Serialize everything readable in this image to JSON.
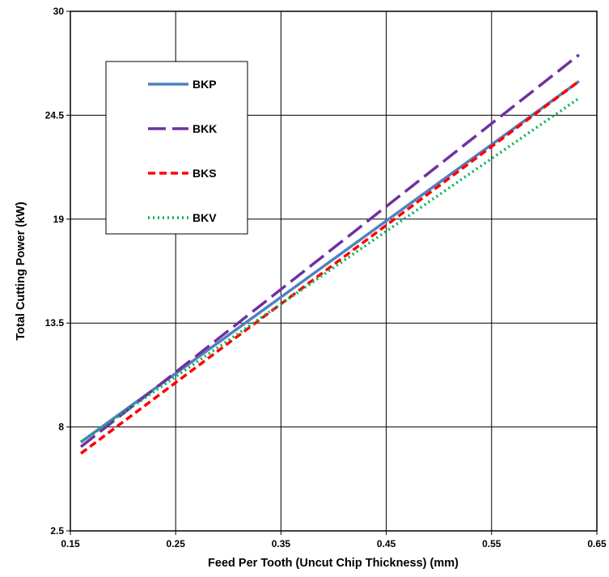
{
  "chart_data": {
    "type": "line",
    "title": "",
    "xlabel": "Feed Per Tooth (Uncut Chip Thickness) (mm)",
    "ylabel": "Total Cutting Power (kW)",
    "xlim": [
      0.15,
      0.65
    ],
    "ylim": [
      2.5,
      30
    ],
    "xticks": [
      "0.15",
      "0.25",
      "0.35",
      "0.45",
      "0.55",
      "0.65"
    ],
    "yticks": [
      "2.5",
      "8",
      "13.5",
      "19",
      "24.5",
      "30"
    ],
    "grid": true,
    "legend_position": "top-left",
    "series": [
      {
        "name": "BKP",
        "color": "#4f81bd",
        "dash": "solid",
        "x": [
          0.16,
          0.633
        ],
        "y": [
          7.2,
          26.3
        ]
      },
      {
        "name": "BKK",
        "color": "#7030a0",
        "dash": "long-dash",
        "x": [
          0.16,
          0.633
        ],
        "y": [
          6.95,
          27.7
        ]
      },
      {
        "name": "BKS",
        "color": "#ff0000",
        "dash": "dash",
        "x": [
          0.16,
          0.633
        ],
        "y": [
          6.6,
          26.3
        ]
      },
      {
        "name": "BKV",
        "color": "#00b050",
        "dash": "dot",
        "x": [
          0.16,
          0.633
        ],
        "y": [
          7.2,
          25.4
        ]
      }
    ]
  }
}
